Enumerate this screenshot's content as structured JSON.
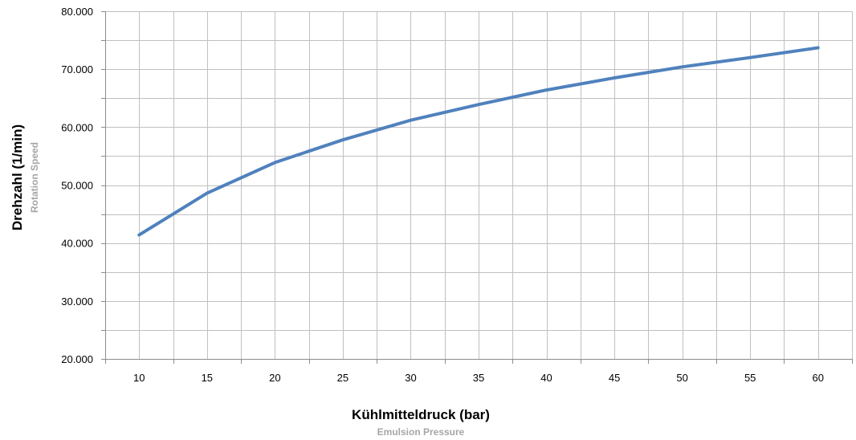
{
  "chart_data": {
    "type": "line",
    "xlabel": "Kühlmitteldruck (bar)",
    "xlabel_sub": "Emulsion Pressure",
    "ylabel": "Drehzahl (1/min)",
    "ylabel_sub": "Rotation Speed",
    "xlim": [
      7.5,
      62.5
    ],
    "ylim": [
      20000,
      80000
    ],
    "x_ticks": [
      10,
      15,
      20,
      25,
      30,
      35,
      40,
      45,
      50,
      55,
      60
    ],
    "x_tick_labels": [
      "10",
      "15",
      "20",
      "25",
      "30",
      "35",
      "40",
      "45",
      "50",
      "55",
      "60"
    ],
    "y_ticks": [
      20000,
      30000,
      40000,
      50000,
      60000,
      70000,
      80000
    ],
    "y_tick_labels": [
      "20.000",
      "30.000",
      "40.000",
      "50.000",
      "60.000",
      "70.000",
      "80.000"
    ],
    "grid": true,
    "series": [
      {
        "x": [
          10,
          15,
          20,
          25,
          30,
          35,
          40,
          45,
          50,
          55,
          60
        ],
        "values": [
          41400,
          48600,
          53900,
          57800,
          61200,
          63900,
          66400,
          68500,
          70400,
          72000,
          73700
        ],
        "color": "#4f81bd"
      }
    ]
  }
}
